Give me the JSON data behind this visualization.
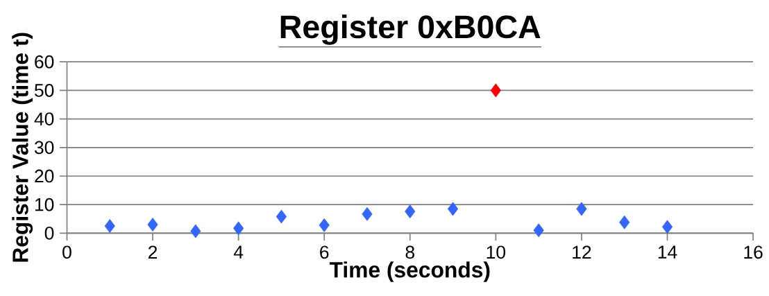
{
  "chart_data": {
    "type": "scatter",
    "title": "Register 0xB0CA",
    "xlabel": "Time (seconds)",
    "ylabel": "Register Value (time t)",
    "series": [
      {
        "color": "#3366ff",
        "x": [
          1,
          2,
          3,
          4,
          5,
          6,
          7,
          8,
          9,
          11,
          12,
          13,
          14
        ],
        "values": [
          2.5,
          3.0,
          0.7,
          1.7,
          5.8,
          2.8,
          6.7,
          7.6,
          8.5,
          1.0,
          8.5,
          3.8,
          2.2
        ]
      },
      {
        "color": "#ff0000",
        "x": [
          10
        ],
        "values": [
          50
        ]
      }
    ],
    "xlim": [
      0,
      16
    ],
    "xticks": [
      0,
      2,
      4,
      6,
      8,
      10,
      12,
      14,
      16
    ],
    "ylim": [
      0,
      60
    ],
    "yticks": [
      0,
      10,
      20,
      30,
      40,
      50,
      60
    ],
    "grid": "y",
    "marker": "diamond"
  }
}
